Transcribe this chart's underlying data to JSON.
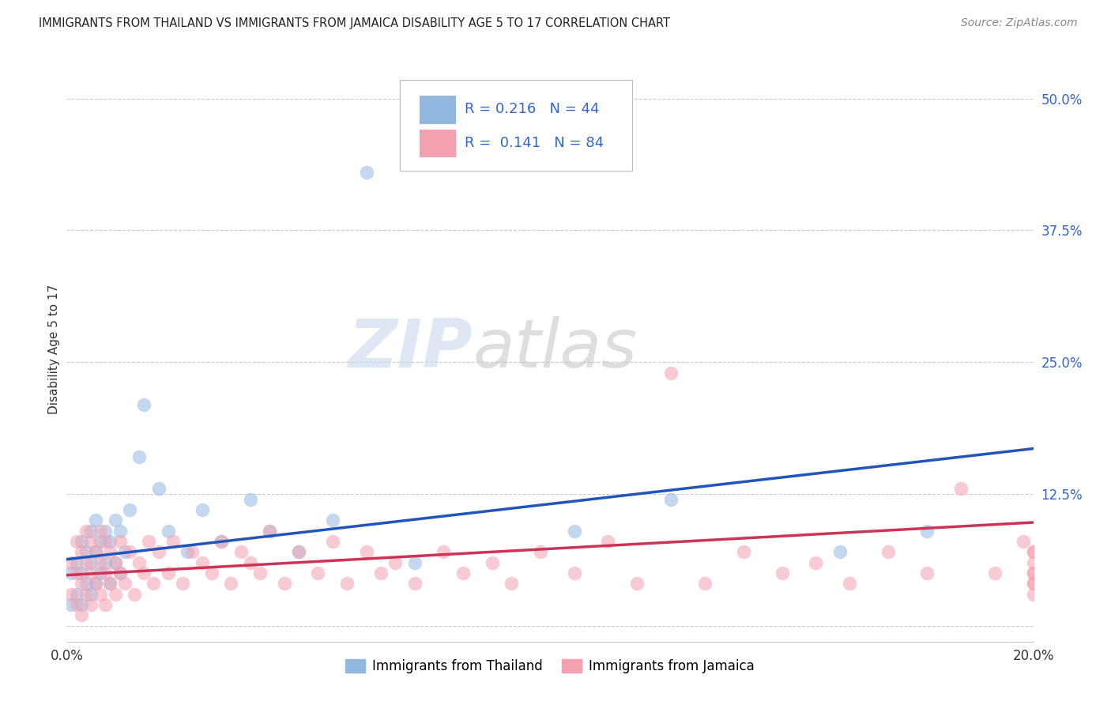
{
  "title": "IMMIGRANTS FROM THAILAND VS IMMIGRANTS FROM JAMAICA DISABILITY AGE 5 TO 17 CORRELATION CHART",
  "source": "Source: ZipAtlas.com",
  "ylabel": "Disability Age 5 to 17",
  "xlim": [
    0.0,
    0.2
  ],
  "ylim": [
    -0.015,
    0.54
  ],
  "x_ticks": [
    0.0,
    0.05,
    0.1,
    0.15,
    0.2
  ],
  "x_tick_labels": [
    "0.0%",
    "",
    "",
    "",
    "20.0%"
  ],
  "y_ticks_right": [
    0.0,
    0.125,
    0.25,
    0.375,
    0.5
  ],
  "y_tick_labels_right": [
    "",
    "12.5%",
    "25.0%",
    "37.5%",
    "50.0%"
  ],
  "thailand_color": "#92B8E0",
  "jamaica_color": "#F4A0B0",
  "trendline_thailand_color": "#2255BB",
  "trendline_jamaica_color": "#CC3355",
  "R_thailand": 0.216,
  "N_thailand": 44,
  "R_jamaica": 0.141,
  "N_jamaica": 84,
  "watermark_zip": "ZIP",
  "watermark_atlas": "atlas",
  "legend_label_thailand": "Immigrants from Thailand",
  "legend_label_jamaica": "Immigrants from Jamaica",
  "thailand_x": [
    0.001,
    0.001,
    0.002,
    0.002,
    0.003,
    0.003,
    0.003,
    0.004,
    0.004,
    0.005,
    0.005,
    0.005,
    0.006,
    0.006,
    0.006,
    0.007,
    0.007,
    0.008,
    0.008,
    0.009,
    0.009,
    0.01,
    0.01,
    0.011,
    0.011,
    0.012,
    0.013,
    0.015,
    0.016,
    0.019,
    0.021,
    0.025,
    0.028,
    0.032,
    0.038,
    0.042,
    0.048,
    0.055,
    0.062,
    0.072,
    0.105,
    0.125,
    0.16,
    0.178
  ],
  "thailand_y": [
    0.02,
    0.05,
    0.03,
    0.06,
    0.02,
    0.05,
    0.08,
    0.04,
    0.07,
    0.03,
    0.06,
    0.09,
    0.04,
    0.07,
    0.1,
    0.05,
    0.08,
    0.06,
    0.09,
    0.04,
    0.08,
    0.06,
    0.1,
    0.05,
    0.09,
    0.07,
    0.11,
    0.16,
    0.21,
    0.13,
    0.09,
    0.07,
    0.11,
    0.08,
    0.12,
    0.09,
    0.07,
    0.1,
    0.43,
    0.06,
    0.09,
    0.12,
    0.07,
    0.09
  ],
  "jamaica_x": [
    0.001,
    0.001,
    0.002,
    0.002,
    0.002,
    0.003,
    0.003,
    0.003,
    0.004,
    0.004,
    0.004,
    0.005,
    0.005,
    0.005,
    0.006,
    0.006,
    0.007,
    0.007,
    0.007,
    0.008,
    0.008,
    0.008,
    0.009,
    0.009,
    0.01,
    0.01,
    0.011,
    0.011,
    0.012,
    0.013,
    0.014,
    0.015,
    0.016,
    0.017,
    0.018,
    0.019,
    0.021,
    0.022,
    0.024,
    0.026,
    0.028,
    0.03,
    0.032,
    0.034,
    0.036,
    0.038,
    0.04,
    0.042,
    0.045,
    0.048,
    0.052,
    0.055,
    0.058,
    0.062,
    0.065,
    0.068,
    0.072,
    0.078,
    0.082,
    0.088,
    0.092,
    0.098,
    0.105,
    0.112,
    0.118,
    0.125,
    0.132,
    0.14,
    0.148,
    0.155,
    0.162,
    0.17,
    0.178,
    0.185,
    0.192,
    0.198,
    0.2,
    0.2,
    0.2,
    0.2,
    0.2,
    0.2,
    0.2,
    0.2
  ],
  "jamaica_y": [
    0.03,
    0.06,
    0.02,
    0.05,
    0.08,
    0.04,
    0.07,
    0.01,
    0.03,
    0.06,
    0.09,
    0.02,
    0.05,
    0.08,
    0.04,
    0.07,
    0.03,
    0.06,
    0.09,
    0.02,
    0.05,
    0.08,
    0.04,
    0.07,
    0.03,
    0.06,
    0.05,
    0.08,
    0.04,
    0.07,
    0.03,
    0.06,
    0.05,
    0.08,
    0.04,
    0.07,
    0.05,
    0.08,
    0.04,
    0.07,
    0.06,
    0.05,
    0.08,
    0.04,
    0.07,
    0.06,
    0.05,
    0.09,
    0.04,
    0.07,
    0.05,
    0.08,
    0.04,
    0.07,
    0.05,
    0.06,
    0.04,
    0.07,
    0.05,
    0.06,
    0.04,
    0.07,
    0.05,
    0.08,
    0.04,
    0.24,
    0.04,
    0.07,
    0.05,
    0.06,
    0.04,
    0.07,
    0.05,
    0.13,
    0.05,
    0.08,
    0.04,
    0.07,
    0.05,
    0.06,
    0.04,
    0.07,
    0.05,
    0.03
  ],
  "trendline_thailand_start_y": 0.063,
  "trendline_thailand_end_y": 0.168,
  "trendline_jamaica_start_y": 0.048,
  "trendline_jamaica_end_y": 0.098
}
